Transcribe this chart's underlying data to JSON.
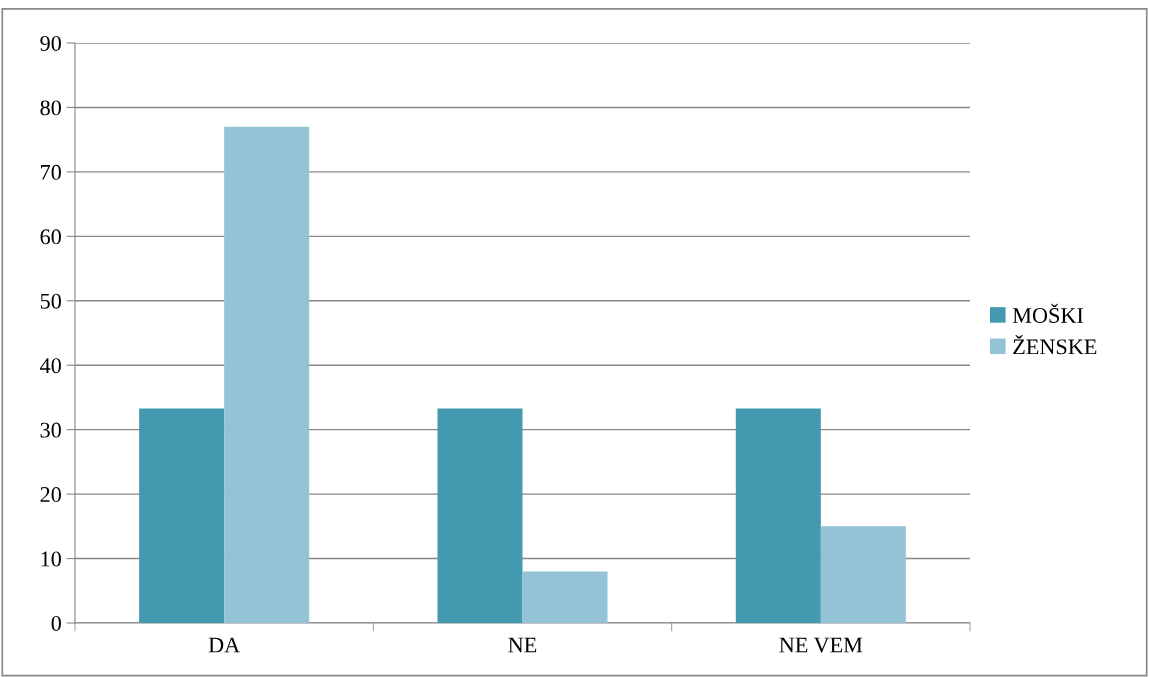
{
  "chart_data": {
    "type": "bar",
    "categories": [
      "DA",
      "NE",
      "NE VEM"
    ],
    "series": [
      {
        "name": "MOŠKI",
        "color": "#4399b0",
        "values": [
          33.3,
          33.3,
          33.3
        ]
      },
      {
        "name": "ŽENSKE",
        "color": "#93c3d5",
        "values": [
          77,
          8,
          15
        ]
      }
    ],
    "ylim": [
      0,
      90
    ],
    "yticks": [
      0,
      10,
      20,
      30,
      40,
      50,
      60,
      70,
      80,
      90
    ],
    "grid": "y",
    "legend": "right"
  }
}
